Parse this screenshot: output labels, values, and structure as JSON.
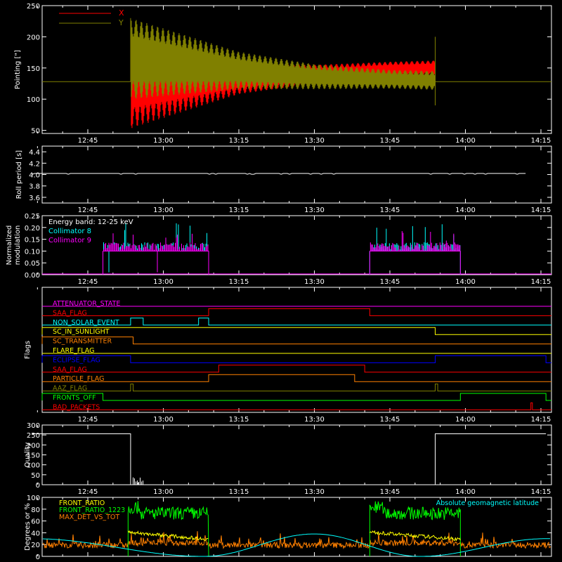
{
  "x_axis": {
    "ticks": [
      "12:45",
      "13:00",
      "13:15",
      "13:30",
      "13:45",
      "14:00",
      "14:15"
    ]
  },
  "colors": {
    "background": "#000000",
    "axes": "#ffffff",
    "x": "#ff0000",
    "y": "#808000",
    "cyan": "#00ffff",
    "magenta": "#ff00ff"
  },
  "panels": {
    "pointing": {
      "ylabel": "Pointing [\"]",
      "yticks": [
        "50",
        "100",
        "150",
        "200",
        "250"
      ],
      "legend": [
        "X",
        "Y"
      ]
    },
    "roll": {
      "ylabel": "Roll period [s]",
      "yticks": [
        "3.6",
        "3.8",
        "4.0",
        "4.2",
        "4.4"
      ]
    },
    "modulation": {
      "ylabel_line1": "Normalized",
      "ylabel_line2": "modulation",
      "yticks": [
        "0.00",
        "0.05",
        "0.10",
        "0.15",
        "0.20",
        "0.25"
      ],
      "legend": [
        "Energy band: 12-25 keV",
        "Collimator 8",
        "Collimator 9"
      ]
    },
    "flags": {
      "ylabel": "Flags",
      "names": [
        "ATTENUATOR_STATE",
        "SAA_FLAG",
        "NON_SOLAR_EVENT",
        "SC_IN_SUNLIGHT",
        "SC_TRANSMITTER",
        "FLARE_FLAG",
        "ECLIPSE_FLAG",
        "SAA_FLAG",
        "PARTICLE_FLAG",
        "AAZ_FLAG",
        "FRONTS_OFF",
        "BAD_PACKETS"
      ]
    },
    "quality": {
      "ylabel": "Quality",
      "yticks": [
        "0",
        "50",
        "100",
        "150",
        "200",
        "250",
        "300"
      ]
    },
    "ratio": {
      "ylabel": "Degrees or %",
      "yticks": [
        "0",
        "20",
        "40",
        "60",
        "80",
        "100"
      ],
      "legend": [
        "FRONT_RATIO",
        "FRONT_RATIO_1223",
        "MAX_DET_VS_TOT"
      ],
      "right_label": "Absolute geomagnetic latitude"
    }
  },
  "chart_data": [
    {
      "type": "line",
      "x_range_utc": [
        "12:34",
        "14:16"
      ],
      "ylim": [
        45,
        250
      ],
      "series": [
        {
          "name": "X",
          "x": [
            "12:34",
            "12:53",
            "12:53.5",
            "13:15",
            "13:30",
            "13:45",
            "13:54"
          ],
          "y_center": [
            128,
            128,
            128,
            133,
            140,
            148,
            150
          ],
          "y_half_amplitude": [
            0,
            0,
            75,
            25,
            15,
            12,
            12
          ]
        },
        {
          "name": "Y",
          "x": [
            "12:34",
            "12:53",
            "12:53.5",
            "13:15",
            "13:30",
            "13:45",
            "13:54"
          ],
          "y_center": [
            128,
            128,
            165,
            146,
            136,
            132,
            130
          ],
          "y_half_amplitude": [
            0,
            0,
            65,
            30,
            20,
            15,
            15
          ]
        }
      ]
    },
    {
      "type": "line",
      "ylim": [
        3.5,
        4.5
      ],
      "series": [
        {
          "x": [
            "12:34",
            "14:12"
          ],
          "y": [
            4.02,
            4.02
          ]
        }
      ]
    },
    {
      "type": "line",
      "ylim": [
        0,
        0.25
      ],
      "segments_utc": [
        [
          "12:48",
          "13:09"
        ],
        [
          "13:41",
          "13:59"
        ]
      ],
      "series": [
        {
          "name": "Collimator 8",
          "baseline": 0.1,
          "max": 0.22
        },
        {
          "name": "Collimator 9",
          "baseline": 0.1,
          "max": 0.19
        }
      ]
    },
    {
      "type": "line",
      "flags": [
        {
          "name": "ATTENUATOR_STATE",
          "color": "#ff00ff",
          "on": []
        },
        {
          "name": "SAA_FLAG",
          "color": "#ff0000",
          "on": [
            [
              "13:09",
              "13:41"
            ]
          ]
        },
        {
          "name": "NON_SOLAR_EVENT",
          "color": "#00ffff",
          "on": [
            [
              "12:53.5",
              "12:56"
            ],
            [
              "13:07",
              "13:09"
            ]
          ]
        },
        {
          "name": "SC_IN_SUNLIGHT",
          "color": "#ffff00",
          "on": [
            [
              "12:34",
              "13:54"
            ]
          ]
        },
        {
          "name": "SC_TRANSMITTER",
          "color": "#ff8000",
          "on": [
            [
              "12:34",
              "12:54"
            ]
          ]
        },
        {
          "name": "FLARE_FLAG",
          "color": "#ffff00",
          "on": []
        },
        {
          "name": "ECLIPSE_FLAG",
          "color": "#0000ff",
          "on": [
            [
              "12:34",
              "12:53.5"
            ],
            [
              "13:54",
              "14:16"
            ]
          ]
        },
        {
          "name": "SAA_FLAG",
          "color": "#ff0000",
          "on": [
            [
              "13:11",
              "13:40"
            ]
          ]
        },
        {
          "name": "PARTICLE_FLAG",
          "color": "#ff8000",
          "on": [
            [
              "13:09",
              "13:38"
            ]
          ]
        },
        {
          "name": "AAZ_FLAG",
          "color": "#808000",
          "on": [
            [
              "12:53.5",
              "12:54"
            ],
            [
              "13:54",
              "13:54.5"
            ]
          ]
        },
        {
          "name": "FRONTS_OFF",
          "color": "#00ff00",
          "on": [
            [
              "12:34",
              "12:48"
            ],
            [
              "13:59",
              "14:16"
            ]
          ]
        },
        {
          "name": "BAD_PACKETS",
          "color": "#ff0000",
          "on": [
            [
              "14:13",
              "14:13.3"
            ]
          ]
        }
      ]
    },
    {
      "type": "line",
      "ylim": [
        0,
        300
      ],
      "series": [
        {
          "x": [
            "12:34",
            "12:53.5",
            "12:53.5",
            "13:54",
            "13:54",
            "14:16"
          ],
          "y": [
            256,
            256,
            0,
            0,
            256,
            256
          ]
        }
      ]
    },
    {
      "type": "line",
      "ylim": [
        0,
        100
      ],
      "series": [
        {
          "name": "FRONT_RATIO",
          "note": "yellow, ~35-40 during daytime segments"
        },
        {
          "name": "FRONT_RATIO_1223",
          "note": "green, ~60-95 during 12:53-13:09 and 13:41-13:59"
        },
        {
          "name": "MAX_DET_VS_TOT",
          "note": "orange, ~15-25 noisy"
        },
        {
          "name": "Absolute geomagnetic latitude",
          "x": [
            "12:34",
            "13:08",
            "13:30",
            "13:51",
            "14:16"
          ],
          "y": [
            30,
            0,
            38,
            0,
            30
          ]
        }
      ]
    }
  ]
}
